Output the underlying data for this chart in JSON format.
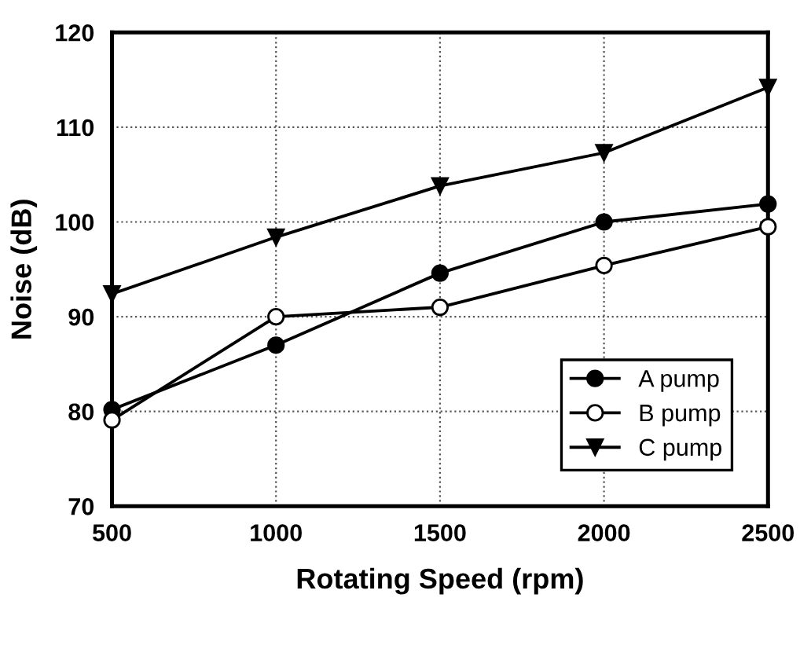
{
  "chart_data": {
    "type": "line",
    "xlabel": "Rotating Speed (rpm)",
    "ylabel": "Noise (dB)",
    "x": [
      500,
      1000,
      1500,
      2000,
      2500
    ],
    "series": [
      {
        "name": "A pump",
        "color": "#000000",
        "marker": "circle",
        "values": [
          80.2,
          87.0,
          94.6,
          100.0,
          101.9
        ]
      },
      {
        "name": "B pump",
        "color": "#000000",
        "marker": "open_circle",
        "values": [
          79.1,
          90.0,
          91.0,
          95.4,
          99.5
        ]
      },
      {
        "name": "C pump",
        "color": "#000000",
        "marker": "triangle_down",
        "values": [
          92.4,
          98.4,
          103.8,
          107.3,
          114.2
        ]
      }
    ],
    "xlim": [
      500,
      2500
    ],
    "xticks": [
      500,
      1000,
      1500,
      2000,
      2500
    ],
    "ylim": [
      70,
      120
    ],
    "yticks": [
      70,
      80,
      90,
      100,
      110,
      120
    ],
    "grid": true,
    "legend": "lower right",
    "line_style": "solid"
  }
}
